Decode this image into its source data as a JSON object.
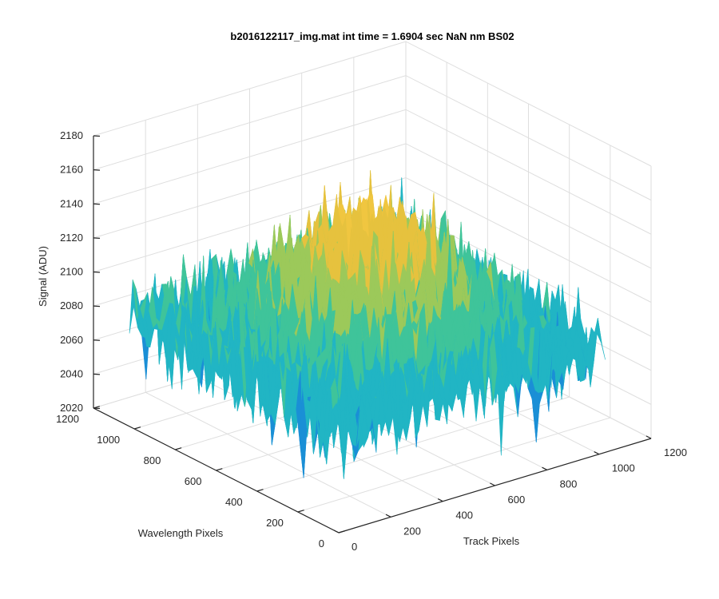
{
  "chart_data": {
    "type": "surface",
    "title": "b2016122117_img.mat int time = 1.6904 sec  NaN nm BS02",
    "xlabel": "Track Pixels",
    "ylabel": "Wavelength Pixels",
    "zlabel": "Signal (ADU)",
    "xlim": [
      0,
      1200
    ],
    "ylim": [
      0,
      1200
    ],
    "zlim": [
      2020,
      2180
    ],
    "x_ticks": [
      0,
      200,
      400,
      600,
      800,
      1000,
      1200
    ],
    "y_ticks": [
      0,
      200,
      400,
      600,
      800,
      1000,
      1200
    ],
    "z_ticks": [
      2020,
      2040,
      2060,
      2080,
      2100,
      2120,
      2140,
      2160,
      2180
    ],
    "x_tick_labels": [
      "0",
      "200",
      "400",
      "600",
      "800",
      "1000",
      "1200"
    ],
    "y_tick_labels": [
      "0",
      "200",
      "400",
      "600",
      "800",
      "1000",
      "1200"
    ],
    "z_tick_labels": [
      "2020",
      "2040",
      "2060",
      "2080",
      "2100",
      "2120",
      "2140",
      "2160",
      "2180"
    ],
    "grid": true,
    "surface": {
      "x_extent": [
        0,
        1024
      ],
      "y_extent": [
        0,
        1024
      ],
      "signal_center_peak": 2145,
      "signal_edge_level": 2080,
      "signal_noise_low": 2035,
      "signal_noise_high": 2165,
      "colormap": [
        "#0072bd",
        "#1a8fd6",
        "#21b5c4",
        "#3fc49a",
        "#9cc95a",
        "#e6c23e",
        "#f0c640"
      ]
    }
  }
}
